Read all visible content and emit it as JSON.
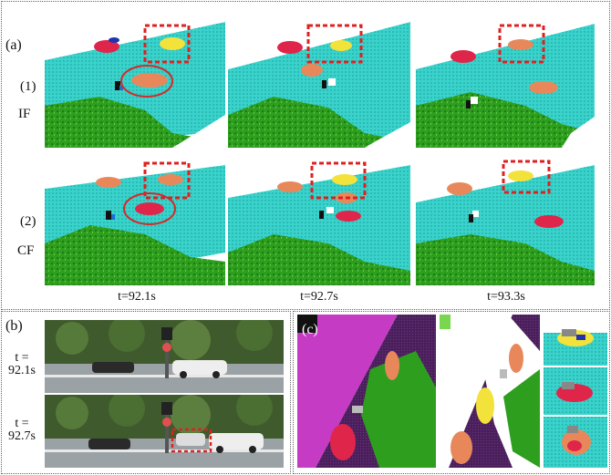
{
  "panel_a": {
    "label": "(a)",
    "rows": [
      {
        "index": "(1)",
        "name": "IF"
      },
      {
        "index": "(2)",
        "name": "CF"
      }
    ],
    "times": [
      "t=92.1s",
      "t=92.7s",
      "t=93.3s"
    ]
  },
  "panel_b": {
    "label": "(b)",
    "times": [
      "t =\n92.1s",
      "t =\n92.7s"
    ]
  },
  "panel_c": {
    "label": "(c)"
  },
  "colors": {
    "ground": "#39d3cc",
    "vegetation": "#2e9e1f",
    "car_red": "#e0254a",
    "car_orange": "#e8885a",
    "car_yellow": "#f2e23a",
    "highlight_box": "#e02020",
    "terrain_magenta": "#c53bc4",
    "terrain_purple": "#4a1f5c"
  }
}
